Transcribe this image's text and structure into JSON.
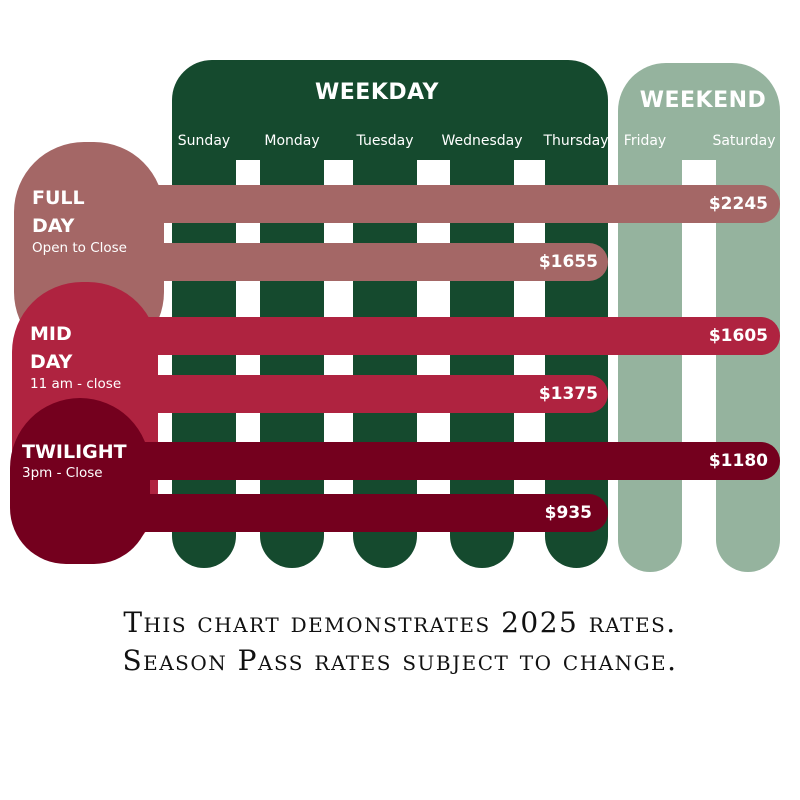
{
  "headers": {
    "weekday": "WEEKDAY",
    "weekend": "WEEKEND"
  },
  "days": [
    "Sunday",
    "Monday",
    "Tuesday",
    "Wednesday",
    "Thursday",
    "Friday",
    "Saturday"
  ],
  "tiers": {
    "full_day": {
      "title_line1": "FULL",
      "title_line2": "DAY",
      "hours": "Open to Close",
      "weekend_price": "$2245",
      "weekday_price": "$1655"
    },
    "mid_day": {
      "title_line1": "MID",
      "title_line2": "DAY",
      "hours": "11 am - close",
      "weekend_price": "$1605",
      "weekday_price": "$1375"
    },
    "twilight": {
      "title": "TWILIGHT",
      "hours": "3pm - Close",
      "weekend_price": "$1180",
      "weekday_price": "$935"
    }
  },
  "footer": {
    "line1": "This chart demonstrates 2025 rates.",
    "line2": "Season Pass rates subject to change."
  },
  "colors": {
    "weekday_green": "#154a2e",
    "weekend_green": "#95b39e",
    "full_day": "#a46766",
    "mid_day": "#af2340",
    "twilight": "#74001e"
  }
}
